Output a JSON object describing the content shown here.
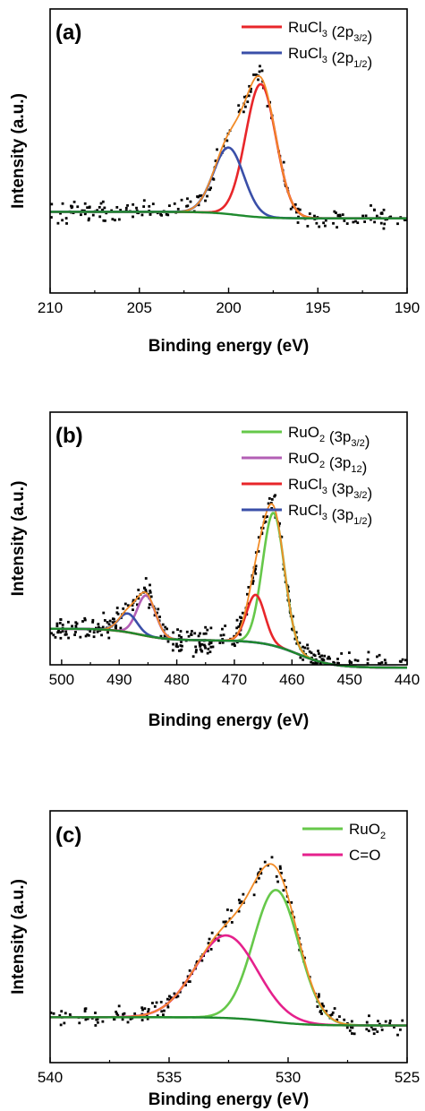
{
  "chart_data": [
    {
      "type": "line",
      "panel_label": "(a)",
      "xlabel": "Binding energy (eV)",
      "ylabel": "Intensity (a.u.)",
      "xlim": [
        210,
        190
      ],
      "x_reversed": true,
      "xticks": [
        "210",
        "205",
        "200",
        "195",
        "190"
      ],
      "xtick_values": [
        210,
        205,
        200,
        195,
        190
      ],
      "ylim": [
        -0.5,
        1.25
      ],
      "legend_position": "top-right",
      "colors": {
        "envelope": "#f28c28",
        "background": "#1f8a2e",
        "raw": "#000000"
      },
      "series": [
        {
          "name": "RuCl3 (2p3/2)",
          "label_main": "RuCl",
          "label_sub1": "3",
          "label_mid": " (2p",
          "label_sub2": "3/2",
          "label_end": ")",
          "color": "#e8262a",
          "shape": "gaussian",
          "center": 198.2,
          "amplitude": 0.82,
          "sigma": 0.85
        },
        {
          "name": "RuCl3 (2p1/2)",
          "label_main": "RuCl",
          "label_sub1": "3",
          "label_mid": " (2p",
          "label_sub2": "1/2",
          "label_end": ")",
          "color": "#3a4fa8",
          "shape": "gaussian",
          "center": 200.0,
          "amplitude": 0.41,
          "sigma": 0.85
        }
      ],
      "baseline": {
        "type": "step",
        "left": 0.0,
        "right": -0.04,
        "center": 199.5,
        "width": 0.8
      },
      "raw_points": {
        "noise": 0.035,
        "count": 210
      }
    },
    {
      "type": "line",
      "panel_label": "(b)",
      "xlabel": "Binding energy (eV)",
      "ylabel": "Intensity (a.u.)",
      "xlim": [
        502,
        440
      ],
      "x_reversed": true,
      "xticks": [
        "500",
        "490",
        "480",
        "470",
        "460",
        "450",
        "440"
      ],
      "xtick_values": [
        500,
        490,
        480,
        470,
        460,
        450,
        440
      ],
      "ylim": [
        -0.25,
        1.5
      ],
      "legend_position": "top-right",
      "colors": {
        "envelope": "#f28c28",
        "background": "#1f8a2e",
        "raw": "#000000"
      },
      "series": [
        {
          "name": "RuO2 (3p3/2)",
          "label_main": "RuO",
          "label_sub1": "2",
          "label_mid": " (3p",
          "label_sub2": "3/2",
          "label_end": ")",
          "color": "#66c84a",
          "shape": "gaussian",
          "center": 463.2,
          "amplitude": 0.92,
          "sigma": 1.9
        },
        {
          "name": "RuO2 (3p12)",
          "label_main": "RuO",
          "label_sub1": "2",
          "label_mid": " (3p",
          "label_sub2": "12",
          "label_end": ")",
          "color": "#b35fb5",
          "shape": "gaussian",
          "center": 485.3,
          "amplitude": 0.28,
          "sigma": 1.6
        },
        {
          "name": "RuCl3 (3p3/2)",
          "label_main": "RuCl",
          "label_sub1": "3",
          "label_mid": " (3p",
          "label_sub2": "3/2",
          "label_end": ")",
          "color": "#e8262a",
          "shape": "gaussian",
          "center": 466.3,
          "amplitude": 0.33,
          "sigma": 1.6
        },
        {
          "name": "RuCl3 (3p1/2)",
          "label_main": "RuCl",
          "label_sub1": "3",
          "label_mid": " (3p",
          "label_sub2": "1/2",
          "label_end": ")",
          "color": "#3a4fa8",
          "shape": "gaussian",
          "center": 488.5,
          "amplitude": 0.13,
          "sigma": 1.6
        }
      ],
      "baseline": {
        "type": "twostep",
        "left": 0.0,
        "mid": -0.08,
        "right": -0.27,
        "c1": 486.5,
        "w1": 2.5,
        "c2": 459.0,
        "w2": 3.0
      },
      "raw_points": {
        "noise": 0.04,
        "count": 420
      }
    },
    {
      "type": "line",
      "panel_label": "(c)",
      "xlabel": "Binding energy (eV)",
      "ylabel": "Intensity (a.u.)",
      "xlim": [
        540,
        525
      ],
      "x_reversed": true,
      "xticks": [
        "540",
        "535",
        "530",
        "525"
      ],
      "xtick_values": [
        540,
        535,
        530,
        525
      ],
      "ylim": [
        -0.33,
        1.5
      ],
      "legend_position": "top-right",
      "colors": {
        "envelope": "#f28c28",
        "background": "#1f8a2e",
        "raw": "#000000"
      },
      "series": [
        {
          "name": "RuO2",
          "label_main": "RuO",
          "label_sub1": "2",
          "label_mid": "",
          "label_sub2": "",
          "label_end": "",
          "color": "#66c84a",
          "shape": "gaussian",
          "center": 530.5,
          "amplitude": 0.96,
          "sigma": 0.95
        },
        {
          "name": "C=O",
          "label_main": "C=O",
          "label_sub1": "",
          "label_mid": "",
          "label_sub2": "",
          "label_end": "",
          "color": "#e5218c",
          "shape": "gaussian",
          "center": 532.6,
          "amplitude": 0.6,
          "sigma": 1.3
        }
      ],
      "baseline": {
        "type": "step",
        "left": 0.0,
        "right": -0.06,
        "center": 530.8,
        "width": 0.8
      },
      "raw_points": {
        "noise": 0.035,
        "count": 200
      }
    }
  ]
}
